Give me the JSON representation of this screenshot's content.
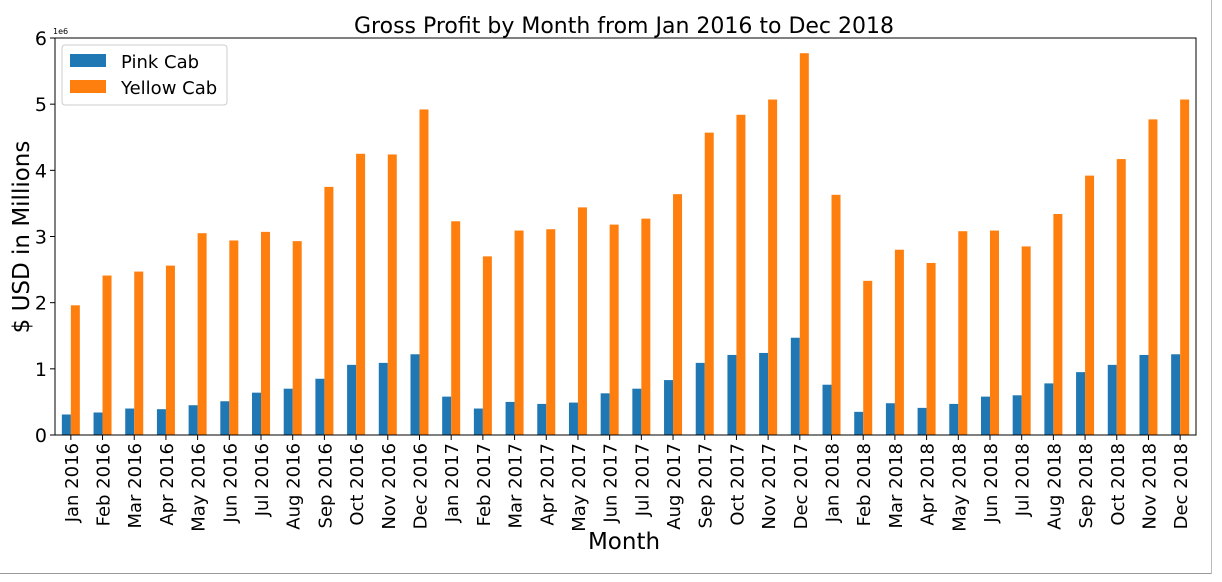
{
  "chart_data": {
    "type": "bar",
    "title": "Gross Profit by Month from Jan 2016 to Dec 2018",
    "xlabel": "Month",
    "ylabel": "$ USD in Millions",
    "offset_label": "1e6",
    "ylim": [
      0,
      6000000
    ],
    "yticks": [
      0,
      1000000,
      2000000,
      3000000,
      4000000,
      5000000,
      6000000
    ],
    "ytick_labels": [
      "0",
      "1",
      "2",
      "3",
      "4",
      "5",
      "6"
    ],
    "grid": false,
    "legend_position": "upper-left",
    "categories": [
      "Jan 2016",
      "Feb 2016",
      "Mar 2016",
      "Apr 2016",
      "May 2016",
      "Jun 2016",
      "Jul 2016",
      "Aug 2016",
      "Sep 2016",
      "Oct 2016",
      "Nov 2016",
      "Dec 2016",
      "Jan 2017",
      "Feb 2017",
      "Mar 2017",
      "Apr 2017",
      "May 2017",
      "Jun 2017",
      "Jul 2017",
      "Aug 2017",
      "Sep 2017",
      "Oct 2017",
      "Nov 2017",
      "Dec 2017",
      "Jan 2018",
      "Feb 2018",
      "Mar 2018",
      "Apr 2018",
      "May 2018",
      "Jun 2018",
      "Jul 2018",
      "Aug 2018",
      "Sep 2018",
      "Oct 2018",
      "Nov 2018",
      "Dec 2018"
    ],
    "series": [
      {
        "name": "Pink Cab",
        "color": "#1f77b4",
        "values": [
          310000,
          340000,
          400000,
          390000,
          450000,
          510000,
          640000,
          700000,
          850000,
          1060000,
          1090000,
          1220000,
          580000,
          400000,
          500000,
          470000,
          490000,
          630000,
          700000,
          830000,
          1090000,
          1210000,
          1240000,
          1470000,
          760000,
          350000,
          480000,
          410000,
          470000,
          580000,
          600000,
          780000,
          950000,
          1060000,
          1210000,
          1220000
        ]
      },
      {
        "name": "Yellow Cab",
        "color": "#ff7f0e",
        "values": [
          1960000,
          2410000,
          2470000,
          2560000,
          3050000,
          2940000,
          3070000,
          2930000,
          3750000,
          4250000,
          4240000,
          4920000,
          3230000,
          2700000,
          3090000,
          3110000,
          3440000,
          3180000,
          3270000,
          3640000,
          4570000,
          4840000,
          5070000,
          5770000,
          3630000,
          2330000,
          2800000,
          2600000,
          3080000,
          3090000,
          2850000,
          3340000,
          3920000,
          4170000,
          4770000,
          5070000
        ]
      }
    ]
  }
}
